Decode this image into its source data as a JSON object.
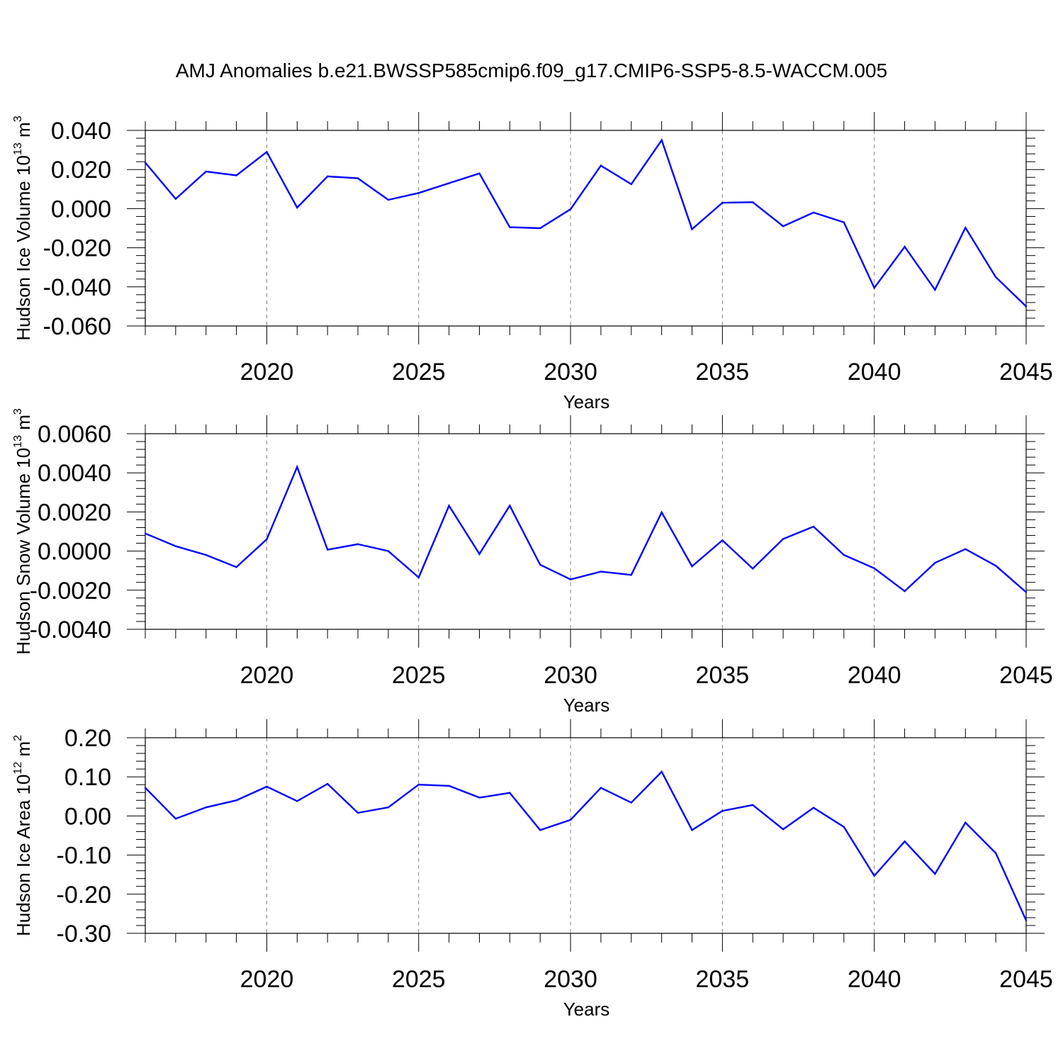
{
  "title": "AMJ Anomalies b.e21.BWSSP585cmip6.f09_g17.CMIP6-SSP5-8.5-WACCM.005",
  "colors": {
    "line": "#0000ff",
    "axis": "#000000",
    "gridline": "#808080"
  },
  "chart_data": [
    {
      "type": "line",
      "ylabel_base": "Hudson Ice Volume 10",
      "ylabel_exp": "13",
      "ylabel_unit": " m",
      "ylabel_unit_exp": "3",
      "xlabel": "Years",
      "xlim": [
        2016,
        2045
      ],
      "xticks": [
        2020,
        2025,
        2030,
        2035,
        2040,
        2045
      ],
      "ylim": [
        -0.06,
        0.04
      ],
      "yticks": [
        0.04,
        0.02,
        0.0,
        -0.02,
        -0.04,
        -0.06
      ],
      "ytick_labels": [
        "0.040",
        "0.020",
        "0.000",
        "-0.020",
        "-0.040",
        "-0.060"
      ],
      "yminor": 0.004,
      "x": [
        2016,
        2017,
        2018,
        2019,
        2020,
        2021,
        2022,
        2023,
        2024,
        2025,
        2026,
        2027,
        2028,
        2029,
        2030,
        2031,
        2032,
        2033,
        2034,
        2035,
        2036,
        2037,
        2038,
        2039,
        2040,
        2041,
        2042,
        2043,
        2044,
        2045
      ],
      "values": [
        0.0235,
        0.005,
        0.019,
        0.017,
        0.029,
        0.0005,
        0.0165,
        0.0155,
        0.0045,
        0.008,
        0.013,
        0.018,
        -0.0095,
        -0.01,
        -0.0003,
        0.022,
        0.0125,
        0.035,
        -0.0105,
        0.003,
        0.0033,
        -0.009,
        -0.002,
        -0.007,
        -0.0405,
        -0.0195,
        -0.0415,
        -0.0097,
        -0.035,
        -0.05
      ]
    },
    {
      "type": "line",
      "ylabel_base": "Hudson Snow Volume 10",
      "ylabel_exp": "13",
      "ylabel_unit": " m",
      "ylabel_unit_exp": "3",
      "xlabel": "Years",
      "xlim": [
        2016,
        2045
      ],
      "xticks": [
        2020,
        2025,
        2030,
        2035,
        2040,
        2045
      ],
      "ylim": [
        -0.004,
        0.006
      ],
      "yticks": [
        0.006,
        0.004,
        0.002,
        0.0,
        -0.002,
        -0.004
      ],
      "ytick_labels": [
        "0.0060",
        "0.0040",
        "0.0020",
        "0.0000",
        "-0.0020",
        "-0.0040"
      ],
      "yminor": 0.0004,
      "x": [
        2016,
        2017,
        2018,
        2019,
        2020,
        2021,
        2022,
        2023,
        2024,
        2025,
        2026,
        2027,
        2028,
        2029,
        2030,
        2031,
        2032,
        2033,
        2034,
        2035,
        2036,
        2037,
        2038,
        2039,
        2040,
        2041,
        2042,
        2043,
        2044,
        2045
      ],
      "values": [
        0.0009,
        0.00025,
        -0.0002,
        -0.00082,
        0.0006,
        0.0043,
        7e-05,
        0.00035,
        0.0,
        -0.00135,
        0.00232,
        -0.00015,
        0.00232,
        -0.0007,
        -0.00145,
        -0.00105,
        -0.00122,
        0.00198,
        -0.00078,
        0.00055,
        -0.0009,
        0.00062,
        0.00125,
        -0.0002,
        -0.00088,
        -0.00205,
        -0.0006,
        0.0001,
        -0.00075,
        -0.0021
      ]
    },
    {
      "type": "line",
      "ylabel_base": "Hudson Ice Area 10",
      "ylabel_exp": "12",
      "ylabel_unit": " m",
      "ylabel_unit_exp": "2",
      "xlabel": "Years",
      "xlim": [
        2016,
        2045
      ],
      "xticks": [
        2020,
        2025,
        2030,
        2035,
        2040,
        2045
      ],
      "ylim": [
        -0.3,
        0.2
      ],
      "yticks": [
        0.2,
        0.1,
        0.0,
        -0.1,
        -0.2,
        -0.3
      ],
      "ytick_labels": [
        "0.20",
        "0.10",
        "0.00",
        "-0.10",
        "-0.20",
        "-0.30"
      ],
      "yminor": 0.02,
      "x": [
        2016,
        2017,
        2018,
        2019,
        2020,
        2021,
        2022,
        2023,
        2024,
        2025,
        2026,
        2027,
        2028,
        2029,
        2030,
        2031,
        2032,
        2033,
        2034,
        2035,
        2036,
        2037,
        2038,
        2039,
        2040,
        2041,
        2042,
        2043,
        2044,
        2045
      ],
      "values": [
        0.072,
        -0.007,
        0.022,
        0.04,
        0.075,
        0.038,
        0.082,
        0.008,
        0.022,
        0.08,
        0.077,
        0.047,
        0.059,
        -0.036,
        -0.01,
        0.072,
        0.034,
        0.113,
        -0.036,
        0.013,
        0.028,
        -0.034,
        0.021,
        -0.028,
        -0.153,
        -0.065,
        -0.148,
        -0.017,
        -0.095,
        -0.267
      ]
    }
  ]
}
